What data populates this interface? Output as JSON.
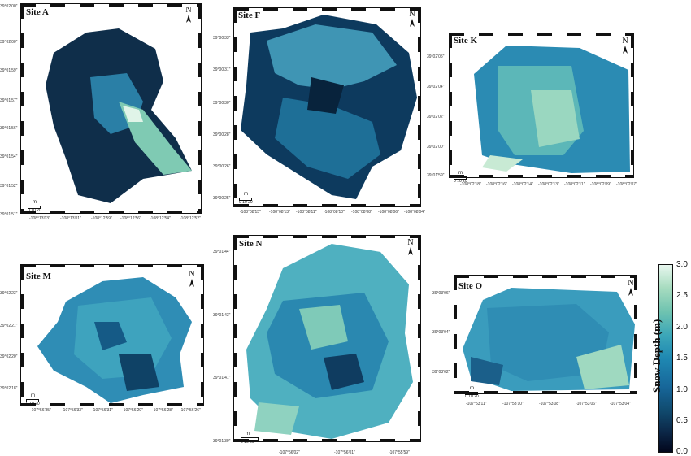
{
  "sites": {
    "A": {
      "label": "Site A",
      "north": "N",
      "lat_ticks": [
        "39°02'00\"",
        "39°02'00\"",
        "39°01'59\"",
        "39°01'57\"",
        "39°01'56\"",
        "39°01'54\"",
        "39°01'52\"",
        "39°01'51\""
      ],
      "lon_ticks": [
        "-108°13'03\"",
        "-108°13'01\"",
        "-108°12'59\"",
        "-108°12'56\"",
        "-108°12'54\"",
        "-108°12'52\""
      ],
      "scale_unit": "m",
      "scale_labels": "0 10 20"
    },
    "F": {
      "label": "Site F",
      "north": "N",
      "lat_ticks": [
        "39°00'33\"",
        "39°00'31\"",
        "39°00'30\"",
        "39°00'28\"",
        "39°00'26\"",
        "39°00'25\""
      ],
      "lon_ticks": [
        "-108°08'15\"",
        "-108°08'13\"",
        "-108°08'11\"",
        "-108°08'10\"",
        "-108°08'08\"",
        "-108°08'06\"",
        "-108°08'04\""
      ],
      "scale_unit": "m",
      "scale_labels": "0 10 20"
    },
    "K": {
      "label": "Site K",
      "north": "N",
      "lat_ticks": [
        "39°02'05\"",
        "39°02'04\"",
        "39°02'02\"",
        "39°02'00\"",
        "39°01'59\""
      ],
      "lon_ticks": [
        "-108°02'18\"",
        "-108°02'16\"",
        "-108°02'14\"",
        "-108°02'13\"",
        "-108°02'11\"",
        "-108°02'09\"",
        "-108°02'07\""
      ],
      "scale_unit": "m",
      "scale_labels": "0 10 20"
    },
    "M": {
      "label": "Site M",
      "north": "N",
      "lat_ticks": [
        "39°02'23\"",
        "39°02'21\"",
        "39°02'20\"",
        "39°02'18\""
      ],
      "lon_ticks": [
        "-107°56'35\"",
        "-107°56'33\"",
        "-107°56'31\"",
        "-107°56'29\"",
        "-107°56'28\"",
        "-107°56'26\""
      ],
      "scale_unit": "m",
      "scale_labels": "0 10 20"
    },
    "N": {
      "label": "Site N",
      "north": "N",
      "lat_ticks": [
        "39°01'44\"",
        "39°01'43\"",
        "39°01'41\"",
        "39°01'39\""
      ],
      "lon_ticks": [
        "-107°56'02\"",
        "-107°56'01\"",
        "-107°55'59\""
      ],
      "scale_unit": "m",
      "scale_labels": "0 10 20"
    },
    "O": {
      "label": "Site O",
      "north": "N",
      "lat_ticks": [
        "39°03'06\"",
        "39°03'04\"",
        "39°03'02\""
      ],
      "lon_ticks": [
        "-107°53'11\"",
        "-107°53'10\"",
        "-107°53'08\"",
        "-107°53'06\"",
        "-107°53'04\""
      ],
      "scale_unit": "m",
      "scale_labels": "0 10 20"
    }
  },
  "colorbar": {
    "label": "Snow Depth (m)",
    "ticks": [
      "3.0",
      "2.5",
      "2.0",
      "1.5",
      "1.0",
      "0.5",
      "0.0"
    ],
    "colors": [
      "#02071c",
      "#104a6e",
      "#1f88b2",
      "#6fc3b0",
      "#e8f7ef"
    ]
  }
}
